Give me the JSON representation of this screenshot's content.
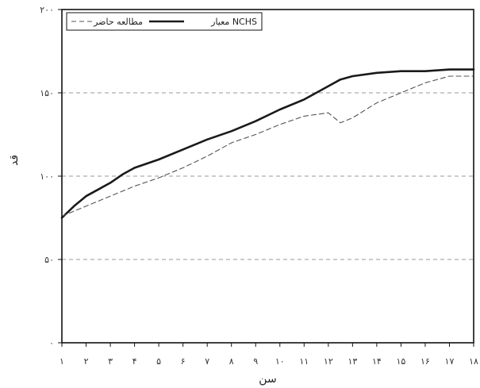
{
  "chart_data": {
    "type": "line",
    "xlabel": "سن",
    "ylabel": "قد",
    "x_ticks": [
      "۱",
      "۲",
      "۳",
      "۴",
      "۵",
      "۶",
      "۷",
      "۸",
      "۹",
      "۱۰",
      "۱۱",
      "۱۲",
      "۱۳",
      "۱۴",
      "۱۵",
      "۱۶",
      "۱۷",
      "۱۸"
    ],
    "y_ticks": [
      "۰",
      "۵۰",
      "۱۰۰",
      "۱۵۰",
      "۲۰۰"
    ],
    "xlim": [
      1,
      18
    ],
    "ylim": [
      0,
      200
    ],
    "grid": "horizontal dashed",
    "legend_position": "top-left",
    "series": [
      {
        "name": "معیار NCHS",
        "style": "solid",
        "color": "#1a1a1a",
        "x": [
          1,
          1.5,
          2,
          2.5,
          3,
          3.5,
          4,
          5,
          6,
          7,
          8,
          9,
          10,
          11,
          12,
          12.5,
          13,
          14,
          15,
          16,
          17,
          17.5,
          18
        ],
        "y": [
          75,
          82,
          88,
          92,
          96,
          101,
          105,
          110,
          116,
          122,
          127,
          133,
          140,
          146,
          154,
          158,
          160,
          162,
          163,
          163,
          164,
          164,
          164
        ]
      },
      {
        "name": "مطالعه حاضر",
        "style": "dashed",
        "color": "#555555",
        "x": [
          1,
          2,
          3,
          4,
          5,
          6,
          7,
          8,
          9,
          10,
          11,
          12,
          12.5,
          13,
          14,
          15,
          16,
          17,
          18
        ],
        "y": [
          76,
          82,
          88,
          94,
          99,
          105,
          112,
          120,
          125,
          131,
          136,
          138,
          132,
          135,
          144,
          150,
          156,
          160,
          160
        ]
      }
    ]
  }
}
